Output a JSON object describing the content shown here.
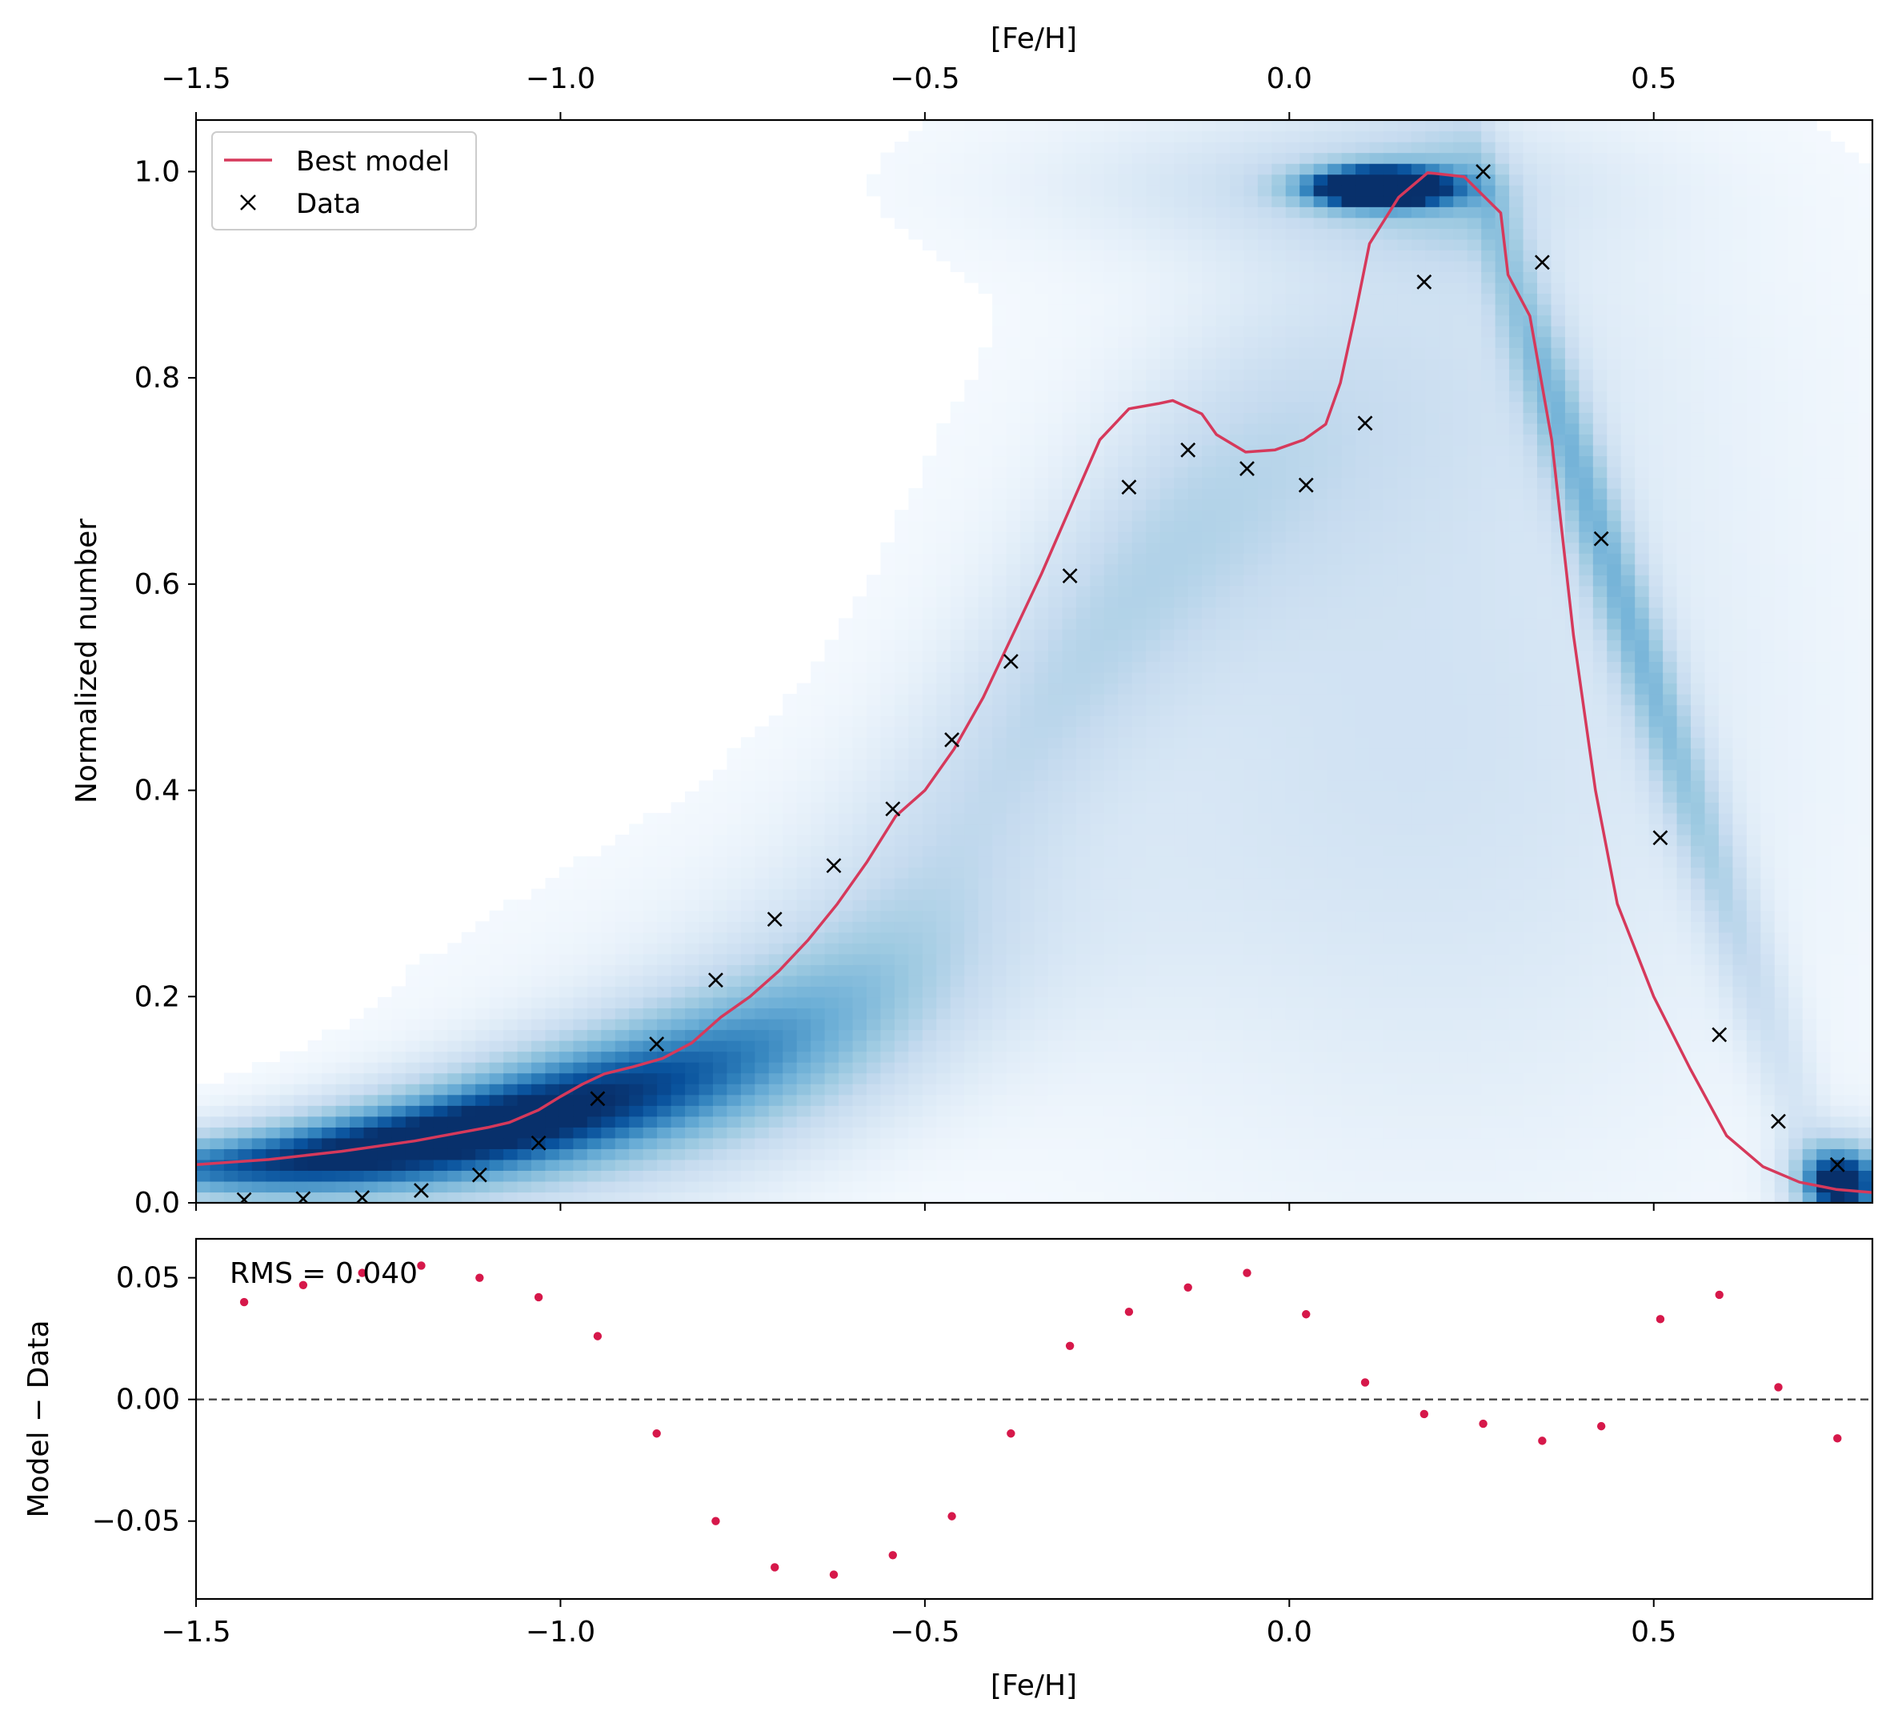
{
  "colors": {
    "model": "#d6395b",
    "data_marker": "#000000",
    "residual": "#d6184a",
    "zero_line": "#444444",
    "heatmap_light": "#f7fbff",
    "heatmap_dark": "#08306b"
  },
  "chart_data": [
    {
      "type": "line",
      "panel": "main",
      "xlabel": "[Fe/H]",
      "ylabel": "Normalized number",
      "xlim": [
        -1.5,
        0.8
      ],
      "ylim": [
        0.0,
        1.05
      ],
      "xticks": [
        -1.5,
        -1.0,
        -0.5,
        0.0,
        0.5
      ],
      "xtick_labels": [
        "−1.5",
        "−1.0",
        "−0.5",
        "0.0",
        "0.5"
      ],
      "yticks": [
        0.0,
        0.2,
        0.4,
        0.6,
        0.8,
        1.0
      ],
      "ytick_labels": [
        "0.0",
        "0.2",
        "0.4",
        "0.6",
        "0.8",
        "1.0"
      ],
      "top_axis": {
        "label": "[Fe/H]",
        "ticks": [
          -1.5,
          -1.0,
          -0.5,
          0.0,
          0.5
        ],
        "tick_labels": [
          "−1.5",
          "−1.0",
          "−0.5",
          "0.0",
          "0.5"
        ]
      },
      "legend": {
        "position": "upper-left",
        "entries": [
          {
            "label": "Best model",
            "kind": "line"
          },
          {
            "label": "Data",
            "kind": "x-marker"
          }
        ]
      },
      "background": "heatmap of model density (Blues)",
      "series": [
        {
          "name": "Best model",
          "kind": "line",
          "x": [
            -1.5,
            -1.4,
            -1.3,
            -1.2,
            -1.1,
            -1.07,
            -1.03,
            -1.0,
            -0.97,
            -0.94,
            -0.9,
            -0.86,
            -0.82,
            -0.78,
            -0.74,
            -0.7,
            -0.66,
            -0.62,
            -0.58,
            -0.54,
            -0.5,
            -0.46,
            -0.42,
            -0.38,
            -0.34,
            -0.3,
            -0.26,
            -0.22,
            -0.18,
            -0.16,
            -0.12,
            -0.1,
            -0.06,
            -0.02,
            0.02,
            0.05,
            0.07,
            0.09,
            0.11,
            0.15,
            0.19,
            0.24,
            0.29,
            0.3,
            0.33,
            0.36,
            0.39,
            0.42,
            0.45,
            0.5,
            0.55,
            0.6,
            0.65,
            0.7,
            0.75,
            0.8
          ],
          "y": [
            0.037,
            0.042,
            0.05,
            0.06,
            0.073,
            0.078,
            0.09,
            0.103,
            0.115,
            0.125,
            0.132,
            0.14,
            0.155,
            0.18,
            0.2,
            0.225,
            0.255,
            0.29,
            0.33,
            0.375,
            0.4,
            0.44,
            0.49,
            0.55,
            0.61,
            0.675,
            0.74,
            0.77,
            0.775,
            0.778,
            0.765,
            0.745,
            0.728,
            0.73,
            0.74,
            0.755,
            0.795,
            0.86,
            0.93,
            0.975,
            0.999,
            0.995,
            0.96,
            0.9,
            0.86,
            0.74,
            0.55,
            0.4,
            0.29,
            0.2,
            0.13,
            0.065,
            0.035,
            0.02,
            0.013,
            0.01
          ]
        },
        {
          "name": "Data",
          "kind": "scatter",
          "x": [
            -1.434,
            -1.353,
            -1.272,
            -1.191,
            -1.111,
            -1.03,
            -0.949,
            -0.868,
            -0.787,
            -0.706,
            -0.625,
            -0.544,
            -0.463,
            -0.382,
            -0.301,
            -0.22,
            -0.139,
            -0.058,
            0.023,
            0.104,
            0.185,
            0.266,
            0.347,
            0.428,
            0.509,
            0.59,
            0.671,
            0.752
          ],
          "y": [
            0.003,
            0.004,
            0.005,
            0.012,
            0.027,
            0.058,
            0.101,
            0.154,
            0.216,
            0.275,
            0.327,
            0.382,
            0.449,
            0.525,
            0.608,
            0.694,
            0.73,
            0.712,
            0.696,
            0.756,
            0.893,
            1.0,
            0.912,
            0.644,
            0.354,
            0.163,
            0.079,
            0.037
          ]
        }
      ]
    },
    {
      "type": "scatter",
      "panel": "residuals",
      "xlabel": "[Fe/H]",
      "ylabel": "Model − Data",
      "xlim": [
        -1.5,
        0.8
      ],
      "ylim": [
        -0.082,
        0.066
      ],
      "xticks": [
        -1.5,
        -1.0,
        -0.5,
        0.0,
        0.5
      ],
      "xtick_labels": [
        "−1.5",
        "−1.0",
        "−0.5",
        "0.0",
        "0.5"
      ],
      "yticks": [
        -0.05,
        0.0,
        0.05
      ],
      "ytick_labels": [
        "−0.05",
        "0.00",
        "0.05"
      ],
      "annotation": "RMS = 0.040",
      "reference_line": 0.0,
      "series": [
        {
          "name": "",
          "x": [
            -1.434,
            -1.353,
            -1.272,
            -1.191,
            -1.111,
            -1.03,
            -0.949,
            -0.868,
            -0.787,
            -0.706,
            -0.625,
            -0.544,
            -0.463,
            -0.382,
            -0.301,
            -0.22,
            -0.139,
            -0.058,
            0.023,
            0.104,
            0.185,
            0.266,
            0.347,
            0.428,
            0.509,
            0.59,
            0.671,
            0.752
          ],
          "y": [
            0.04,
            0.047,
            0.052,
            0.055,
            0.05,
            0.042,
            0.026,
            -0.014,
            -0.05,
            -0.069,
            -0.072,
            -0.064,
            -0.048,
            -0.014,
            0.022,
            0.036,
            0.046,
            0.052,
            0.035,
            0.007,
            -0.006,
            -0.01,
            -0.017,
            -0.011,
            0.033,
            0.043,
            0.005,
            -0.016
          ]
        }
      ]
    }
  ]
}
